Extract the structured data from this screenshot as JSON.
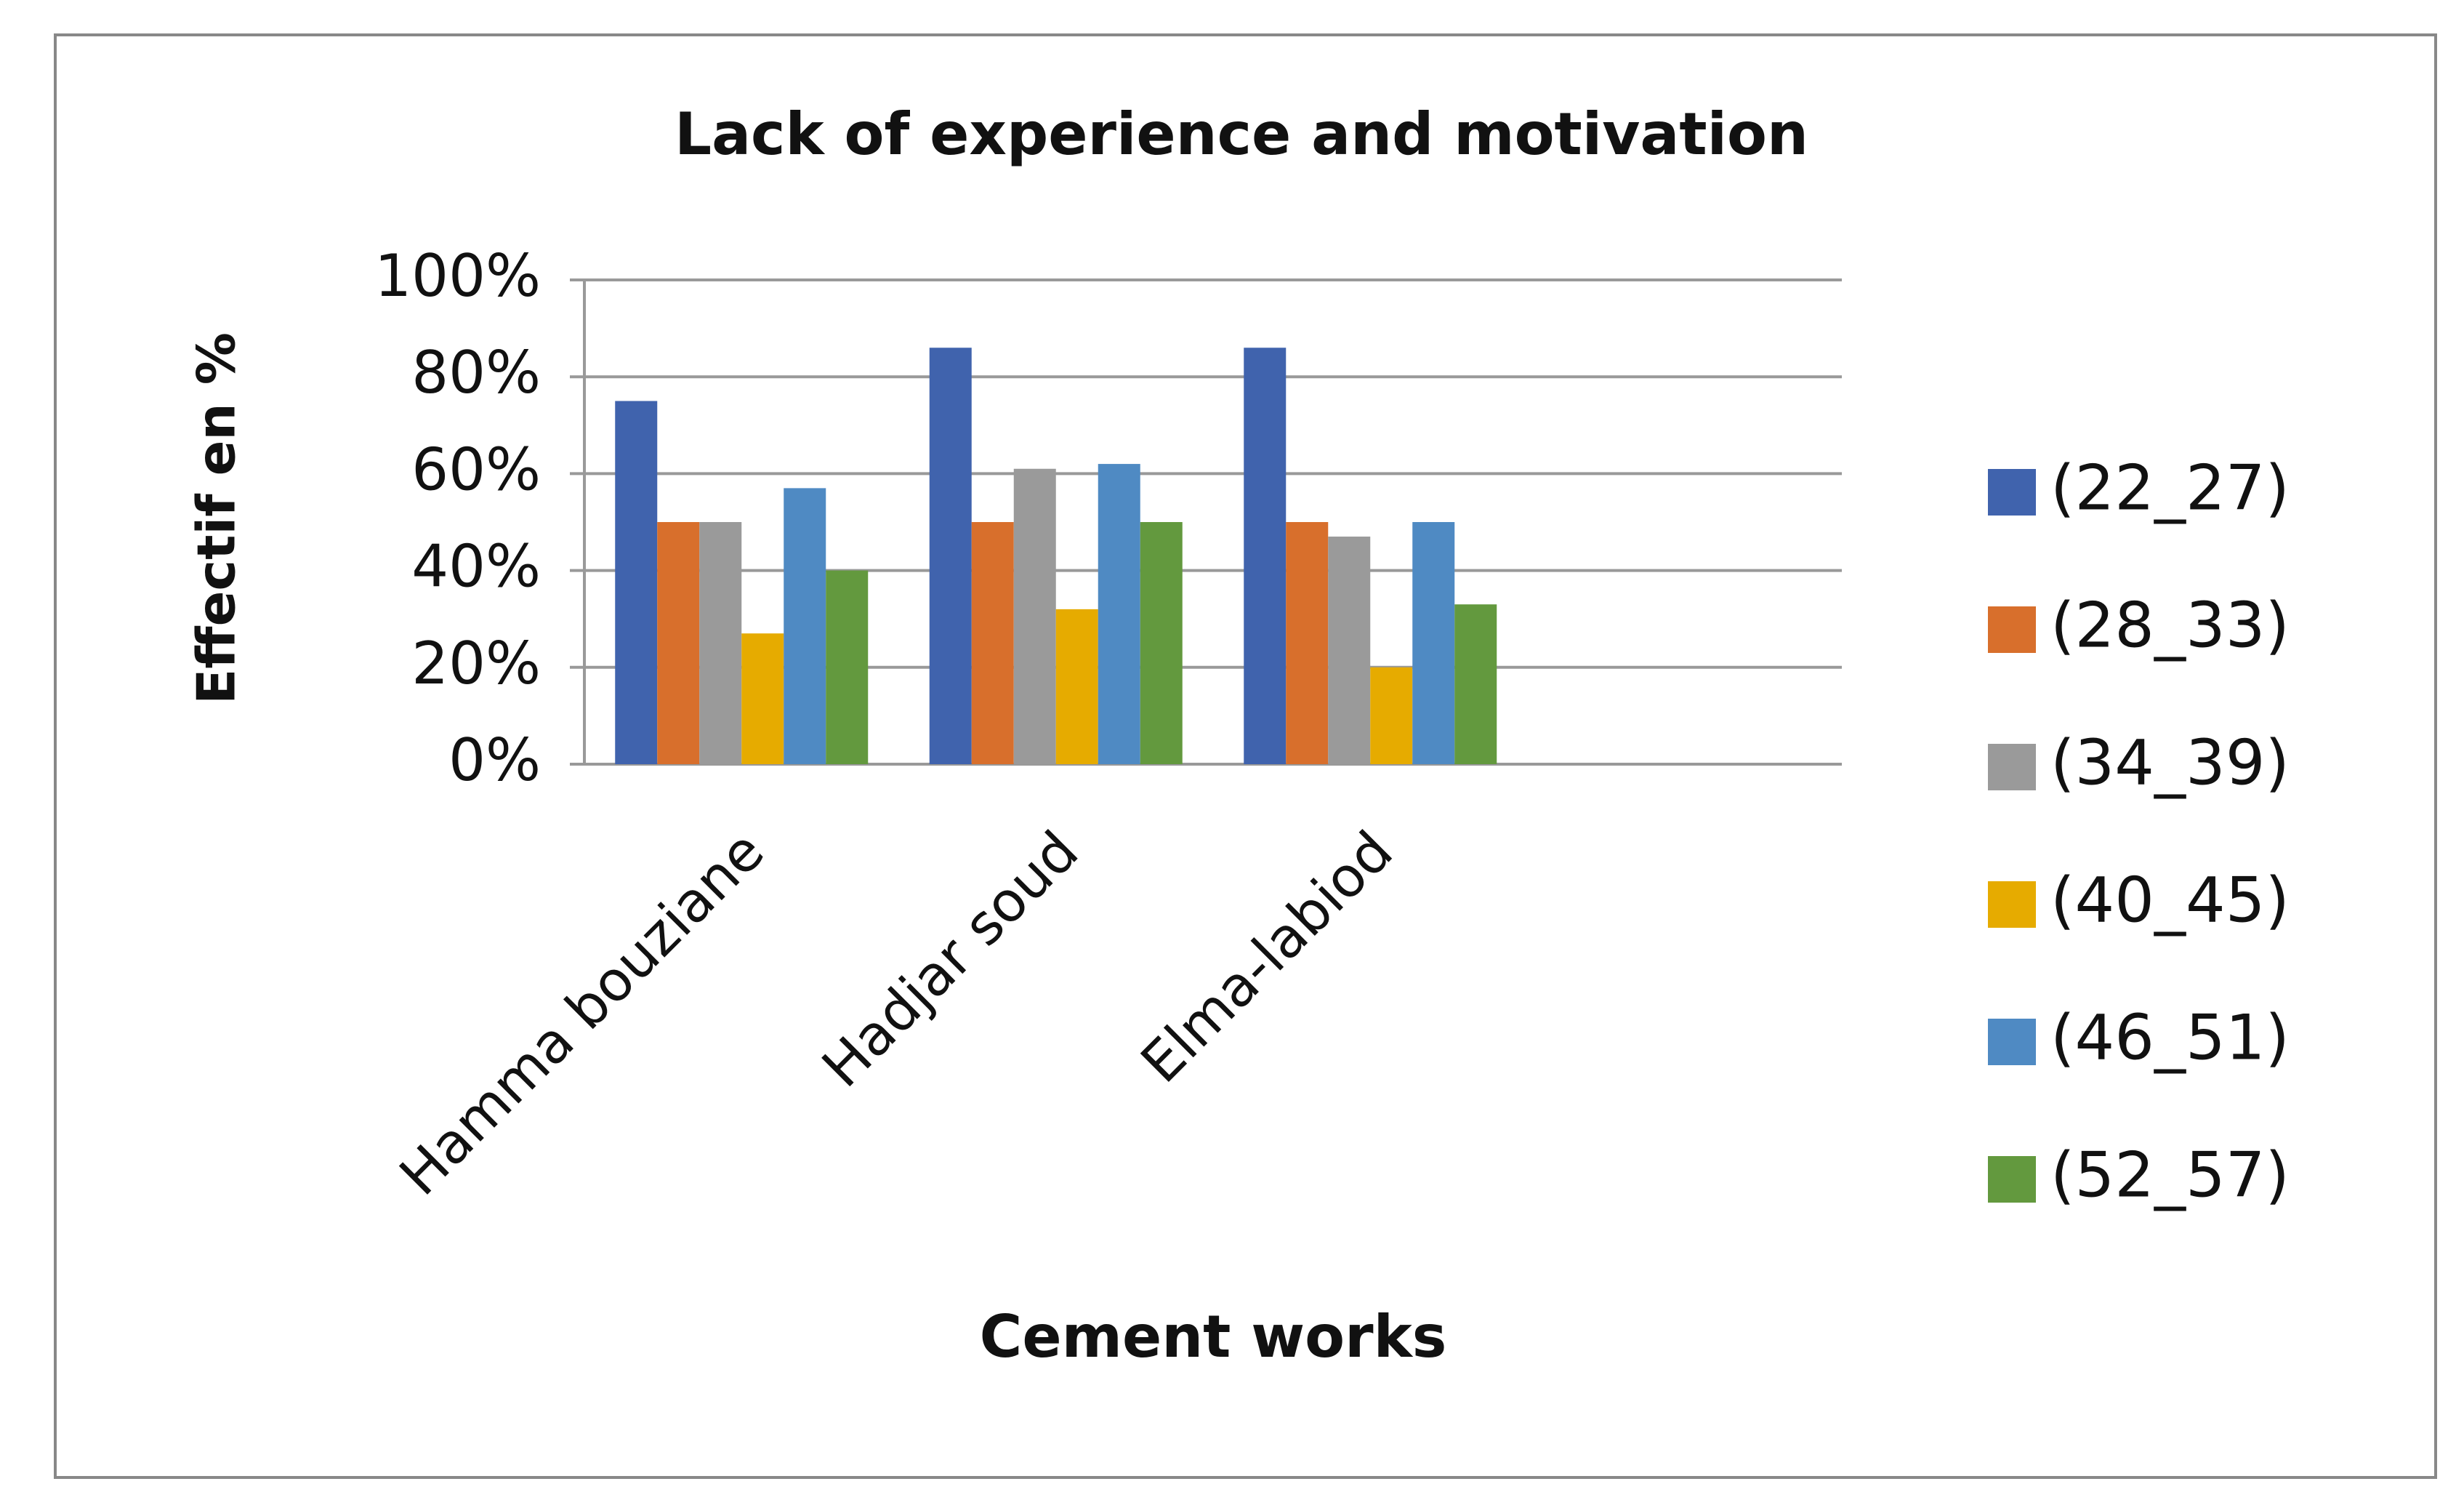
{
  "chart_data": {
    "type": "bar",
    "title": "Lack of experience and motivation",
    "x_label": "Cement works",
    "y_label": "Effectif en %",
    "categories": [
      "Hamma bouziane",
      "Hadjar soud",
      "Elma-labiod",
      null
    ],
    "series": [
      {
        "name": "(22_27)",
        "color": "#4063ad",
        "values": [
          75,
          86,
          86,
          null
        ]
      },
      {
        "name": "(28_33)",
        "color": "#d86f2c",
        "values": [
          50,
          50,
          50,
          null
        ]
      },
      {
        "name": "(34_39)",
        "color": "#9a9a9a",
        "values": [
          50,
          61,
          47,
          null
        ]
      },
      {
        "name": "(40_45)",
        "color": "#e6ab00",
        "values": [
          27,
          32,
          20,
          null
        ]
      },
      {
        "name": "(46_51)",
        "color": "#4f8ac3",
        "values": [
          57,
          62,
          50,
          null
        ]
      },
      {
        "name": "(52_57)",
        "color": "#63993e",
        "values": [
          40,
          50,
          33,
          null
        ]
      }
    ],
    "ylim": [
      0,
      100
    ],
    "yticks": [
      {
        "value": 0,
        "label": "0%"
      },
      {
        "value": 20,
        "label": "20%"
      },
      {
        "value": 40,
        "label": "40%"
      },
      {
        "value": 60,
        "label": "60%"
      },
      {
        "value": 80,
        "label": "80%"
      },
      {
        "value": 100,
        "label": "100%"
      }
    ],
    "grid": true,
    "legend": "right"
  }
}
